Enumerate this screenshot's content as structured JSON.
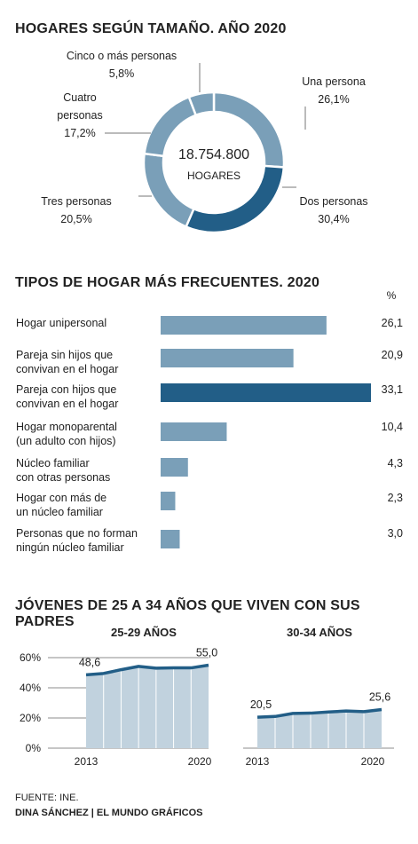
{
  "sections": {
    "s1_title": "HOGARES SEGÚN TAMAÑO. AÑO 2020",
    "s2_title": "TIPOS DE HOGAR MÁS FRECUENTES. 2020",
    "s3_title": "JÓVENES DE 25 A 34 AÑOS QUE VIVEN CON SUS PADRES"
  },
  "footer": {
    "source": "FUENTE: INE.",
    "credit": "DINA SÁNCHEZ | EL MUNDO GRÁFICOS"
  },
  "colors": {
    "light": "#7a9fb8",
    "dark": "#225e87",
    "area_fill": "#c1d2de",
    "line": "#225e87",
    "grid": "#666666"
  },
  "chart_data": [
    {
      "type": "pie",
      "title": "HOGARES SEGÚN TAMAÑO. AÑO 2020",
      "center_total": "18.754.800",
      "center_label": "HOGARES",
      "slices": [
        {
          "label": "Una persona",
          "value": 26.1,
          "value_text": "26,1%",
          "color": "#7a9fb8"
        },
        {
          "label": "Dos personas",
          "value": 30.4,
          "value_text": "30,4%",
          "color": "#225e87"
        },
        {
          "label": "Tres personas",
          "value": 20.5,
          "value_text": "20,5%",
          "color": "#7a9fb8"
        },
        {
          "label": "Cuatro personas",
          "value": 17.2,
          "value_text": "17,2%",
          "color": "#7a9fb8"
        },
        {
          "label": "Cinco o más personas",
          "value": 5.8,
          "value_text": "5,8%",
          "color": "#7a9fb8"
        }
      ]
    },
    {
      "type": "bar",
      "title": "TIPOS DE HOGAR MÁS FRECUENTES. 2020",
      "unit": "%",
      "categories": [
        "Hogar unipersonal",
        "Pareja sin hijos que convivan en el hogar",
        "Pareja con hijos que convivan en el hogar",
        "Hogar monoparental (un adulto con hijos)",
        "Núcleo familiar con otras personas",
        "Hogar con más de un núcleo familiar",
        "Personas que no forman ningún núcleo familiar"
      ],
      "category_lines": [
        [
          "Hogar unipersonal"
        ],
        [
          "Pareja sin hijos que",
          "convivan en el hogar"
        ],
        [
          "Pareja con hijos que",
          "convivan en el hogar"
        ],
        [
          "Hogar monoparental",
          "(un adulto con hijos)"
        ],
        [
          "Núcleo familiar",
          "con otras personas"
        ],
        [
          "Hogar con más de",
          "un núcleo familiar"
        ],
        [
          "Personas que no forman",
          "ningún núcleo familiar"
        ]
      ],
      "values": [
        26.1,
        20.9,
        33.1,
        10.4,
        4.3,
        2.3,
        3.0
      ],
      "value_texts": [
        "26,1",
        "20,9",
        "33,1",
        "10,4",
        "4,3",
        "2,3",
        "3,0"
      ],
      "highlight_index": 2,
      "xlim": [
        0,
        33.1
      ]
    },
    {
      "type": "area",
      "title": "25-29 AÑOS",
      "x": [
        2013,
        2014,
        2015,
        2016,
        2017,
        2018,
        2019,
        2020
      ],
      "values": [
        48.6,
        49.5,
        52.0,
        54.2,
        53.0,
        53.2,
        53.2,
        55.0
      ],
      "ylim": [
        0,
        60
      ],
      "yticks": [
        0,
        20,
        40,
        60
      ],
      "ytick_labels": [
        "0%",
        "20%",
        "40%",
        "60%"
      ],
      "xtick_labels": [
        "2013",
        "2020"
      ],
      "start_label": "48,6",
      "end_label": "55,0"
    },
    {
      "type": "area",
      "title": "30-34 AÑOS",
      "x": [
        2013,
        2014,
        2015,
        2016,
        2017,
        2018,
        2019,
        2020
      ],
      "values": [
        20.5,
        21.0,
        23.0,
        23.2,
        24.0,
        24.6,
        24.2,
        25.6
      ],
      "ylim": [
        0,
        60
      ],
      "xtick_labels": [
        "2013",
        "2020"
      ],
      "start_label": "20,5",
      "end_label": "25,6"
    }
  ]
}
